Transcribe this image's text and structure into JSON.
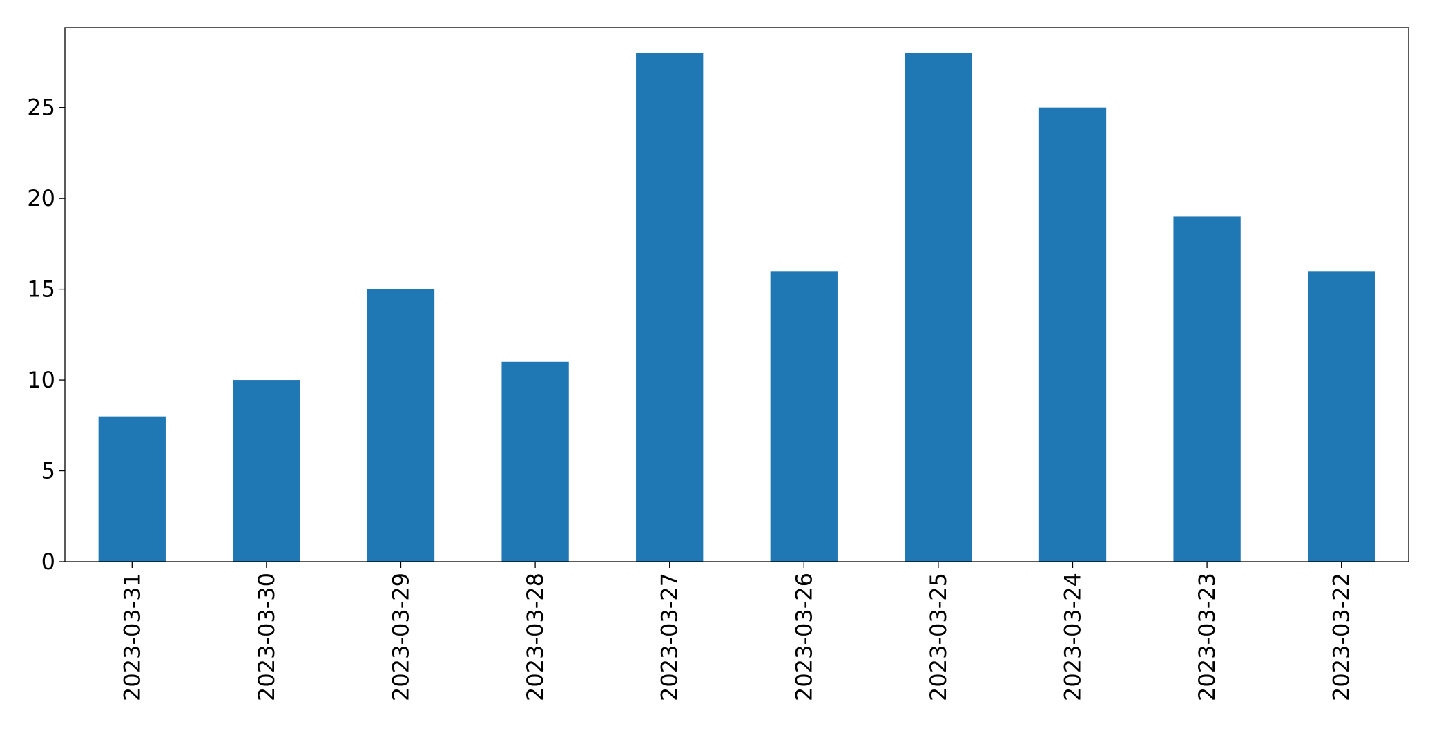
{
  "chart_data": {
    "type": "bar",
    "title": "",
    "xlabel": "",
    "ylabel": "",
    "categories": [
      "2023-03-31",
      "2023-03-30",
      "2023-03-29",
      "2023-03-28",
      "2023-03-27",
      "2023-03-26",
      "2023-03-25",
      "2023-03-24",
      "2023-03-23",
      "2023-03-22"
    ],
    "values": [
      8,
      10,
      15,
      11,
      28,
      16,
      28,
      25,
      19,
      16
    ],
    "ylim": [
      0,
      29.4
    ],
    "yticks": [
      0,
      5,
      10,
      15,
      20,
      25
    ],
    "grid": false,
    "legend": "none",
    "bar_color": "#1f77b4"
  }
}
